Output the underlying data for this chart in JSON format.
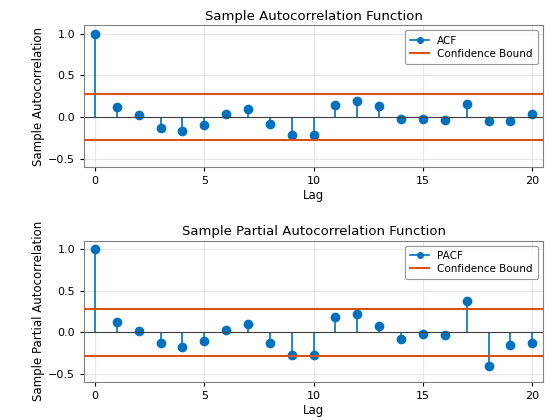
{
  "acf_lags": [
    0,
    1,
    2,
    3,
    4,
    5,
    6,
    7,
    8,
    9,
    10,
    11,
    12,
    13,
    14,
    15,
    16,
    17,
    18,
    19,
    20
  ],
  "acf_values": [
    1.0,
    0.12,
    0.02,
    -0.13,
    -0.17,
    -0.1,
    0.03,
    0.1,
    -0.08,
    -0.22,
    -0.22,
    0.14,
    0.19,
    0.13,
    -0.02,
    -0.02,
    -0.04,
    0.15,
    -0.05,
    -0.05,
    0.03
  ],
  "pacf_lags": [
    0,
    1,
    2,
    3,
    4,
    5,
    6,
    7,
    8,
    9,
    10,
    11,
    12,
    13,
    14,
    15,
    16,
    17,
    18,
    19,
    20
  ],
  "pacf_values": [
    1.0,
    0.12,
    0.01,
    -0.13,
    -0.18,
    -0.1,
    0.03,
    0.1,
    -0.13,
    -0.27,
    -0.27,
    0.18,
    0.22,
    0.08,
    -0.08,
    -0.02,
    -0.03,
    0.37,
    -0.4,
    -0.15,
    -0.13
  ],
  "conf_bound": 0.28,
  "acf_title": "Sample Autocorrelation Function",
  "pacf_title": "Sample Partial Autocorrelation Function",
  "xlabel": "Lag",
  "acf_ylabel": "Sample Autocorrelation",
  "pacf_ylabel": "Sample Partial Autocorrelation",
  "acf_legend_label": "ACF",
  "pacf_legend_label": "PACF",
  "conf_legend_label": "Confidence Bound",
  "stem_color": "#0072BD",
  "conf_color": "#D95319",
  "zero_line_color": "#404040",
  "ylim": [
    -0.6,
    1.1
  ],
  "xlim": [
    -0.5,
    20.5
  ],
  "yticks": [
    -0.5,
    0.0,
    0.5,
    1.0
  ],
  "xticks": [
    0,
    5,
    10,
    15,
    20
  ],
  "bg_color": "#FFFFFF",
  "grid_color": "#E6E6E6",
  "markersize": 7,
  "stem_linewidth": 1.2,
  "conf_linewidth": 1.5,
  "title_fontsize": 9.5,
  "label_fontsize": 8.5,
  "tick_fontsize": 8
}
